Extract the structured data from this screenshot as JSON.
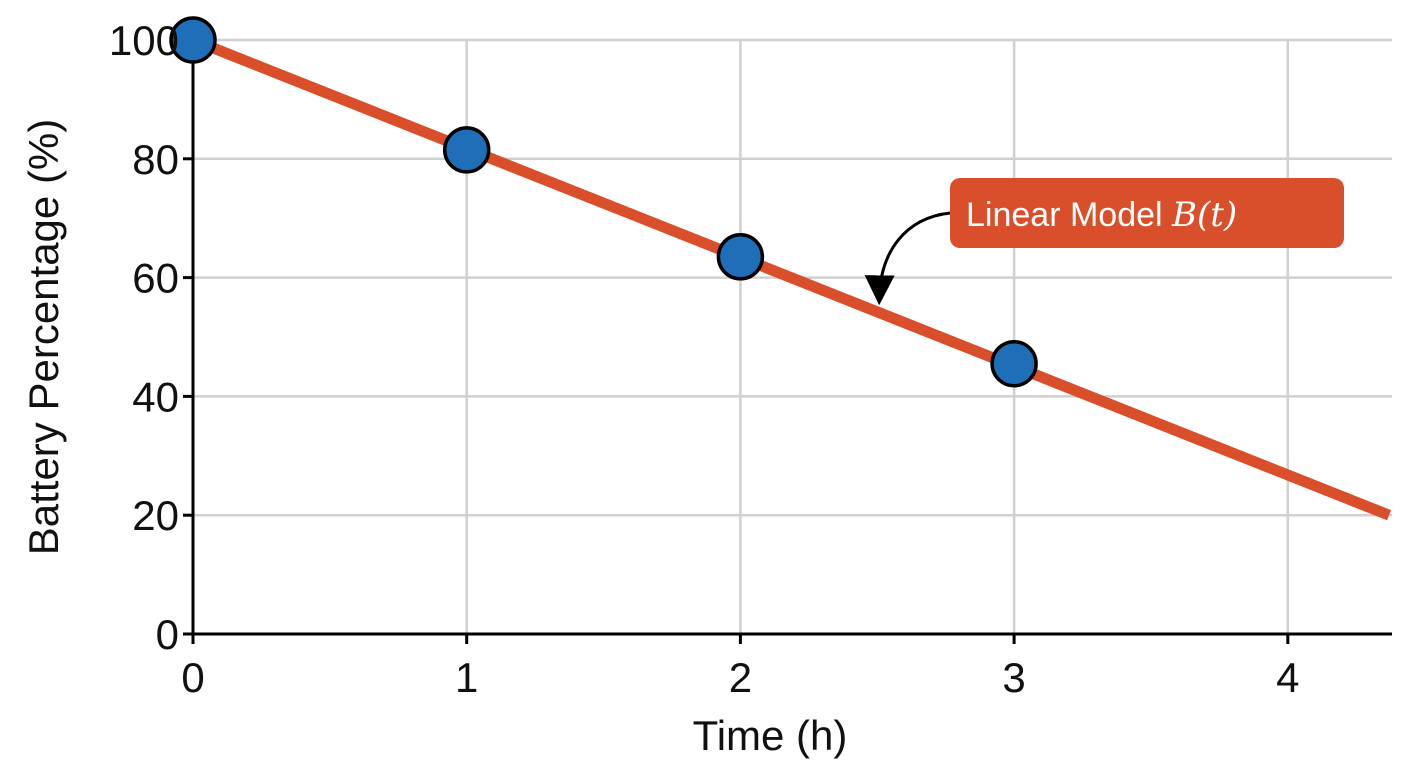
{
  "chart_data": {
    "type": "scatter",
    "xlabel": "Time (h)",
    "ylabel": "Battery Percentage (%)",
    "xlim": [
      0,
      4.37
    ],
    "ylim": [
      0,
      100
    ],
    "x_ticks": [
      0,
      1,
      2,
      3,
      4
    ],
    "y_ticks": [
      0,
      20,
      40,
      60,
      80,
      100
    ],
    "x_tick_labels": [
      "0",
      "1",
      "2",
      "3",
      "4"
    ],
    "y_tick_labels": [
      "0",
      "20",
      "40",
      "60",
      "80",
      "100"
    ],
    "grid": true,
    "series": [
      {
        "kind": "points",
        "x": [
          0,
          1,
          2,
          3
        ],
        "y": [
          100,
          81.5,
          63.5,
          45.5
        ],
        "color": "#1f6fb8"
      },
      {
        "kind": "line",
        "x": [
          0,
          4.37
        ],
        "y": [
          100,
          20
        ],
        "color": "#d94f2b"
      }
    ],
    "annotation": {
      "text": "Linear Model ",
      "math": "B(t)",
      "points_to": {
        "x": 2.5,
        "y": 55
      },
      "background": "#d94f2b"
    }
  }
}
